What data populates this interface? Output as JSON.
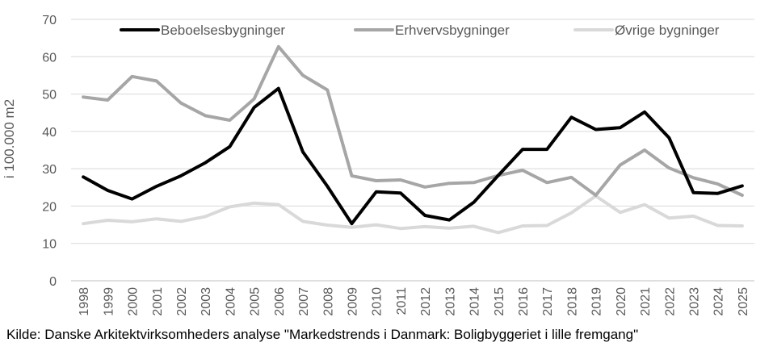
{
  "chart_data": {
    "type": "line",
    "ylabel": "i 100.000 m2",
    "ylim": [
      0,
      70
    ],
    "yticks": [
      0,
      10,
      20,
      30,
      40,
      50,
      60,
      70
    ],
    "grid": true,
    "legend_position": "top",
    "categories": [
      "1998",
      "1999",
      "2000",
      "2001",
      "2002",
      "2003",
      "2004",
      "2005",
      "2006",
      "2007",
      "2008",
      "2009",
      "2010",
      "2011",
      "2012",
      "2013",
      "2014",
      "2015",
      "2016",
      "2017",
      "2018",
      "2019",
      "2020",
      "2021",
      "2022",
      "2023",
      "2024",
      "2025"
    ],
    "series": [
      {
        "name": "Beboelsesbygninger",
        "color": "#000000",
        "values": [
          27.8,
          24.2,
          21.9,
          25.3,
          28.1,
          31.6,
          35.9,
          46.4,
          51.5,
          34.5,
          25.3,
          15.3,
          23.8,
          23.5,
          17.5,
          16.3,
          21.0,
          28.2,
          35.2,
          35.2,
          43.8,
          40.5,
          41.0,
          45.2,
          38.3,
          23.6,
          23.4,
          25.4
        ]
      },
      {
        "name": "Erhvervsbygninger",
        "color": "#a6a6a6",
        "values": [
          49.2,
          48.4,
          54.7,
          53.5,
          47.6,
          44.2,
          43.0,
          48.7,
          62.7,
          55.0,
          51.1,
          28.1,
          26.8,
          27.0,
          25.1,
          26.1,
          26.3,
          28.2,
          29.6,
          26.3,
          27.7,
          22.9,
          31.0,
          35.0,
          30.2,
          27.6,
          25.9,
          22.9
        ]
      },
      {
        "name": "Øvrige bygninger",
        "color": "#d9d9d9",
        "values": [
          15.3,
          16.2,
          15.8,
          16.6,
          15.9,
          17.2,
          19.8,
          20.8,
          20.4,
          15.9,
          14.9,
          14.3,
          15.0,
          14.0,
          14.5,
          14.1,
          14.6,
          12.9,
          14.7,
          14.8,
          18.2,
          22.7,
          18.3,
          20.4,
          16.8,
          17.3,
          14.8,
          14.7
        ]
      }
    ]
  },
  "source_text": "Kilde: Danske Arkitektvirksomheders analyse \"Markedstrends i Danmark: Boligbyggeriet i lille fremgang\""
}
